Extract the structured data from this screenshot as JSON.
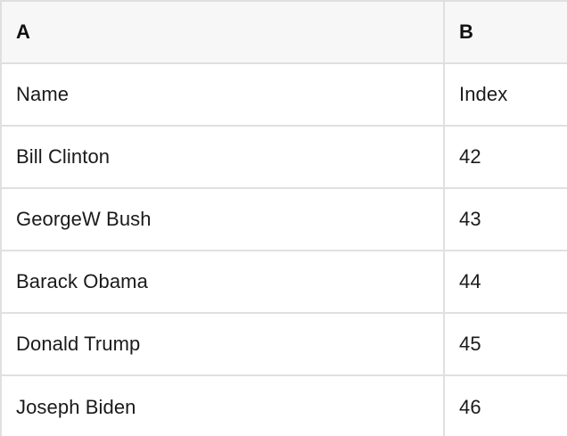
{
  "table": {
    "column_headers": {
      "a": "A",
      "b": "B"
    },
    "rows": [
      {
        "a": "Name",
        "b": "Index"
      },
      {
        "a": "Bill Clinton",
        "b": "42"
      },
      {
        "a": "GeorgeW Bush",
        "b": "43"
      },
      {
        "a": "Barack Obama",
        "b": "44"
      },
      {
        "a": "Donald Trump",
        "b": "45"
      },
      {
        "a": "Joseph Biden",
        "b": "46"
      }
    ]
  },
  "colors": {
    "header_background": "#f7f7f7",
    "grid_line": "#e0e0e0",
    "text": "#1a1a1a",
    "row_background": "#ffffff"
  }
}
